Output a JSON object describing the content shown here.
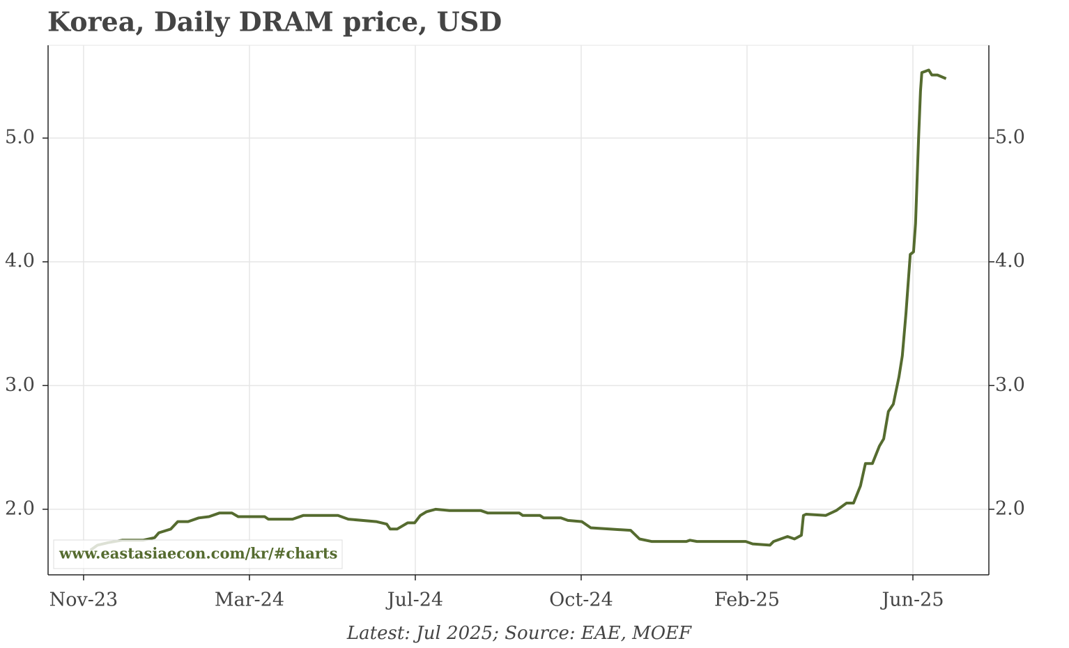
{
  "chart_data": {
    "type": "line",
    "title": "Korea, Daily DRAM price, USD",
    "annotation": "www.eastasiaecon.com/kr/#charts",
    "source": "Latest: Jul 2025; Source: EAE, MOEF",
    "color": "#556b2f",
    "grid": true,
    "xlim": [
      -1.07,
      27.29
    ],
    "ylim": [
      1.47,
      5.75
    ],
    "xticks": [
      {
        "value": 0,
        "label": "Nov-23"
      },
      {
        "value": 5,
        "label": "Mar-24"
      },
      {
        "value": 10,
        "label": "Jul-24"
      },
      {
        "value": 15,
        "label": "Oct-24"
      },
      {
        "value": 20,
        "label": "Feb-25"
      },
      {
        "value": 25,
        "label": "Jun-25"
      }
    ],
    "yticks": [
      {
        "value": 2,
        "label": "2.0"
      },
      {
        "value": 3,
        "label": "3.0"
      },
      {
        "value": 4,
        "label": "4.0"
      },
      {
        "value": 5,
        "label": "5.0"
      }
    ],
    "x": [
      0.21,
      0.42,
      0.74,
      1.16,
      1.79,
      2.14,
      2.27,
      2.63,
      2.84,
      3.15,
      3.47,
      3.78,
      4.1,
      4.47,
      4.66,
      5.46,
      5.57,
      6.3,
      6.62,
      7.67,
      7.98,
      8.82,
      9.14,
      9.24,
      9.45,
      9.77,
      9.98,
      10.15,
      10.34,
      10.61,
      11.03,
      11.97,
      12.18,
      13.13,
      13.24,
      13.76,
      13.87,
      14.39,
      14.6,
      15.02,
      15.29,
      15.86,
      16.49,
      16.76,
      17.12,
      18.17,
      18.28,
      18.49,
      19.75,
      19.96,
      20.17,
      20.69,
      20.8,
      21.22,
      21.43,
      21.64,
      21.7,
      21.78,
      22.37,
      22.69,
      23.0,
      23.21,
      23.42,
      23.57,
      23.78,
      23.99,
      24.12,
      24.26,
      24.41,
      24.58,
      24.68,
      24.79,
      24.92,
      25.02,
      25.08,
      25.17,
      25.23,
      25.27,
      25.38,
      25.48,
      25.57,
      25.74,
      26.0
    ],
    "values": [
      1.67,
      1.71,
      1.73,
      1.75,
      1.75,
      1.77,
      1.81,
      1.84,
      1.9,
      1.9,
      1.93,
      1.94,
      1.97,
      1.97,
      1.94,
      1.94,
      1.92,
      1.92,
      1.95,
      1.95,
      1.92,
      1.9,
      1.88,
      1.84,
      1.84,
      1.89,
      1.89,
      1.95,
      1.98,
      2.0,
      1.99,
      1.99,
      1.97,
      1.97,
      1.95,
      1.95,
      1.93,
      1.93,
      1.91,
      1.9,
      1.85,
      1.84,
      1.83,
      1.76,
      1.74,
      1.74,
      1.75,
      1.74,
      1.74,
      1.74,
      1.72,
      1.71,
      1.74,
      1.78,
      1.76,
      1.79,
      1.95,
      1.96,
      1.95,
      1.99,
      2.05,
      2.05,
      2.19,
      2.37,
      2.37,
      2.51,
      2.57,
      2.79,
      2.85,
      3.07,
      3.24,
      3.58,
      4.06,
      4.08,
      4.31,
      4.99,
      5.38,
      5.53,
      5.54,
      5.55,
      5.51,
      5.51,
      5.48
    ]
  }
}
